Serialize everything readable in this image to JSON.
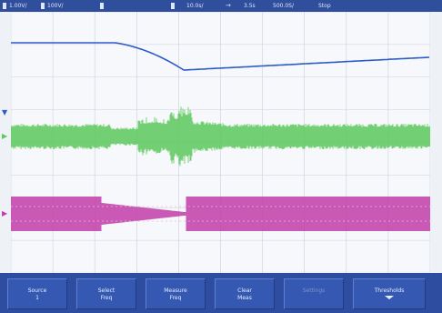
{
  "status_bar": {
    "ch1": "1.00V/",
    "ch2": "100V/",
    "timebase": "10.0s/",
    "trigger": "3.5s",
    "rate": "500.0S/",
    "mode": "Stop"
  },
  "softkeys": [
    {
      "line1": "Source",
      "line2": "1",
      "disabled": false
    },
    {
      "line1": "Select",
      "line2": "Freq",
      "disabled": false
    },
    {
      "line1": "Measure",
      "line2": "Freq",
      "disabled": false
    },
    {
      "line1": "Clear",
      "line2": "Meas",
      "disabled": false
    },
    {
      "line1": "Settings",
      "line2": "",
      "disabled": true
    },
    {
      "line1": "Thresholds",
      "line2": "",
      "disabled": false
    }
  ],
  "colors": {
    "ch1": "#2e5bc7",
    "ch2": "#5cc95c",
    "ch3": "#c23ea8",
    "grid": "#c9cfdb",
    "bezel": "#2e4da0"
  }
}
